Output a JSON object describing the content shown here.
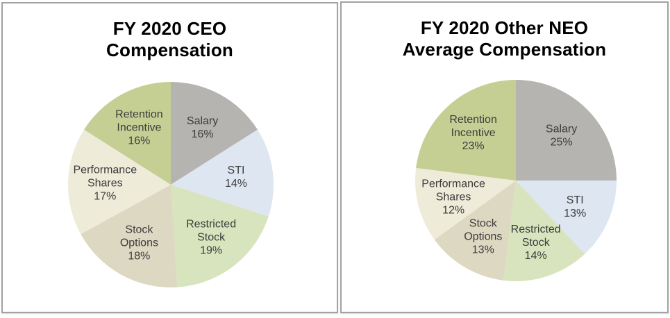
{
  "chart_data": [
    {
      "type": "pie",
      "title": "FY 2020 CEO Compensation",
      "title_lines": [
        "FY 2020 CEO",
        "Compensation"
      ],
      "categories": [
        "Salary",
        "STI",
        "Restricted Stock",
        "Stock Options",
        "Performance Shares",
        "Retention Incentive"
      ],
      "values": [
        16,
        14,
        19,
        18,
        17,
        16
      ],
      "unit": "%",
      "colors": [
        "#b5b4b0",
        "#dde6f1",
        "#d8e4bd",
        "#dcd8c2",
        "#eeebd9",
        "#c5cf94"
      ],
      "label_lines": [
        [
          "Salary"
        ],
        [
          "STI"
        ],
        [
          "Restricted",
          "Stock"
        ],
        [
          "Stock",
          "Options"
        ],
        [
          "Performance",
          "Shares"
        ],
        [
          "Retention",
          "Incentive"
        ]
      ],
      "start_position": "12-o-clock",
      "direction": "clockwise",
      "legend": "none",
      "labels": "inside: category name + percent"
    },
    {
      "type": "pie",
      "title": "FY 2020 Other NEO Average Compensation",
      "title_lines": [
        "FY 2020 Other NEO",
        "Average Compensation"
      ],
      "categories": [
        "Salary",
        "STI",
        "Restricted Stock",
        "Stock Options",
        "Performance Shares",
        "Retention Incentive"
      ],
      "values": [
        25,
        13,
        14,
        13,
        12,
        23
      ],
      "unit": "%",
      "colors": [
        "#b5b4b0",
        "#dde6f1",
        "#d8e4bd",
        "#dcd8c2",
        "#eeebd9",
        "#c5cf94"
      ],
      "label_lines": [
        [
          "Salary"
        ],
        [
          "STI"
        ],
        [
          "Restricted",
          "Stock"
        ],
        [
          "Stock",
          "Options"
        ],
        [
          "Performance",
          "Shares"
        ],
        [
          "Retention",
          "Incentive"
        ]
      ],
      "start_position": "12-o-clock",
      "direction": "clockwise",
      "legend": "none",
      "labels": "inside: category name + percent"
    }
  ],
  "panel_border_color": "#a2a2a2",
  "label_text_color": "#3c3c3c",
  "title_text_color": "#000000"
}
